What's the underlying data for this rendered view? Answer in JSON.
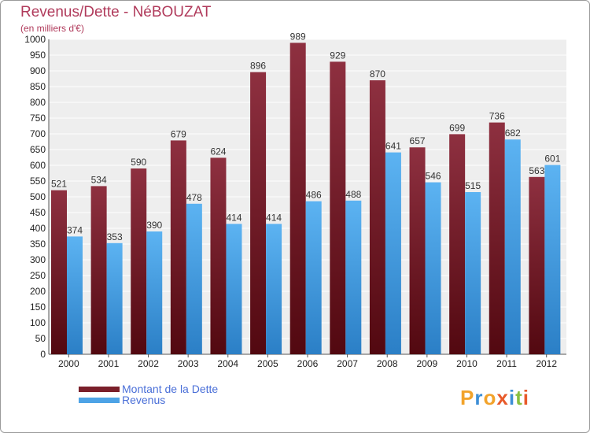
{
  "chart_data": {
    "type": "bar",
    "title": "Revenus/Dette - NéBOUZAT",
    "subtitle": "(en milliers d'€)",
    "categories": [
      "2000",
      "2001",
      "2002",
      "2003",
      "2004",
      "2005",
      "2006",
      "2007",
      "2008",
      "2009",
      "2010",
      "2011",
      "2012"
    ],
    "series": [
      {
        "name": "Montant de la Dette",
        "color": "#7a1f2a",
        "values": [
          521,
          534,
          590,
          679,
          624,
          896,
          989,
          929,
          870,
          657,
          699,
          736,
          563
        ]
      },
      {
        "name": "Revenus",
        "color": "#4da3e6",
        "values": [
          374,
          353,
          390,
          478,
          414,
          414,
          486,
          488,
          641,
          546,
          515,
          682,
          601
        ]
      }
    ],
    "ylim": [
      0,
      1000
    ],
    "ytick_step": 50,
    "grid": true,
    "xlabel": "",
    "ylabel": "",
    "legend_position": "bottom-left"
  },
  "logo": {
    "text": "Proxiti",
    "colors": [
      "#f2a32b",
      "#3d8fd6",
      "#f2a32b",
      "#e85a2a",
      "#3d8fd6",
      "#88c040",
      "#e85a2a"
    ]
  }
}
